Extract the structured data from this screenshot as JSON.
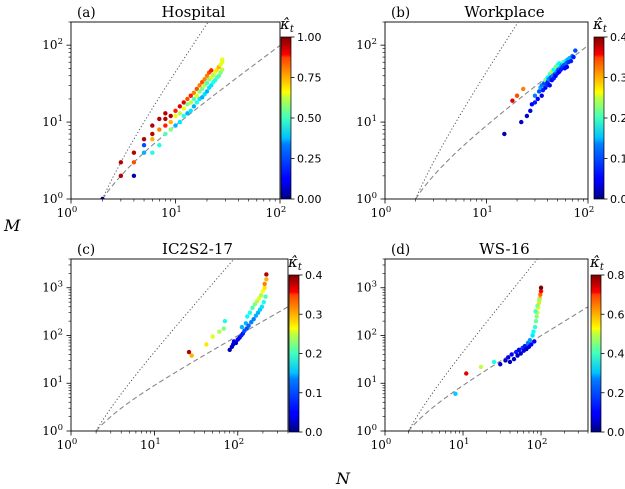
{
  "figure": {
    "x_axis_label": "N",
    "y_axis_label": "M",
    "colorbar_label_main": "κ̂",
    "colorbar_label_sub": "t"
  },
  "chart_data": [
    {
      "type": "scatter",
      "panel_label": "(a)",
      "title": "Hospital",
      "xscale": "log",
      "yscale": "log",
      "xlim": [
        1,
        100
      ],
      "ylim": [
        1,
        200
      ],
      "x_ticks": [
        {
          "base": "10",
          "exp": "0",
          "value": 1
        },
        {
          "base": "10",
          "exp": "1",
          "value": 10
        },
        {
          "base": "10",
          "exp": "2",
          "value": 100
        }
      ],
      "y_ticks": [
        {
          "base": "10",
          "exp": "0",
          "value": 1
        },
        {
          "base": "10",
          "exp": "1",
          "value": 10
        },
        {
          "base": "10",
          "exp": "2",
          "value": 100
        }
      ],
      "colorbar": {
        "min": 0,
        "max": 1,
        "ticks": [
          "0.00",
          "0.25",
          "0.50",
          "0.75",
          "1.00"
        ],
        "tick_values": [
          0,
          0.25,
          0.5,
          0.75,
          1.0
        ]
      },
      "reference_lines": {
        "dotted": "M = N(N-1)/2",
        "dashed": "M = N-1"
      },
      "points": [
        [
          2,
          1,
          0.05
        ],
        [
          3,
          2,
          0.95
        ],
        [
          3,
          3,
          0.95
        ],
        [
          4,
          2,
          0.05
        ],
        [
          4,
          4,
          0.95
        ],
        [
          4,
          3,
          0.8
        ],
        [
          5,
          5,
          0.2
        ],
        [
          5,
          6,
          0.95
        ],
        [
          5,
          4,
          0.3
        ],
        [
          6,
          4,
          0.4
        ],
        [
          6,
          6,
          0.7
        ],
        [
          6,
          7,
          0.95
        ],
        [
          6,
          9,
          0.95
        ],
        [
          7,
          5,
          0.4
        ],
        [
          7,
          8,
          0.75
        ],
        [
          7,
          11,
          0.95
        ],
        [
          8,
          7,
          0.45
        ],
        [
          8,
          9,
          0.85
        ],
        [
          8,
          11,
          0.95
        ],
        [
          8,
          13,
          0.95
        ],
        [
          9,
          8,
          0.5
        ],
        [
          9,
          10,
          0.7
        ],
        [
          9,
          12,
          0.95
        ],
        [
          10,
          9,
          0.3
        ],
        [
          10,
          12,
          0.6
        ],
        [
          10,
          14,
          0.85
        ],
        [
          11,
          10,
          0.35
        ],
        [
          11,
          13,
          0.55
        ],
        [
          11,
          16,
          0.9
        ],
        [
          12,
          12,
          0.4
        ],
        [
          12,
          15,
          0.6
        ],
        [
          12,
          18,
          0.9
        ],
        [
          13,
          13,
          0.3
        ],
        [
          13,
          17,
          0.5
        ],
        [
          13,
          20,
          0.8
        ],
        [
          14,
          14,
          0.35
        ],
        [
          14,
          18,
          0.55
        ],
        [
          14,
          22,
          0.85
        ],
        [
          15,
          16,
          0.3
        ],
        [
          15,
          20,
          0.45
        ],
        [
          15,
          24,
          0.75
        ],
        [
          16,
          18,
          0.4
        ],
        [
          16,
          22,
          0.6
        ],
        [
          16,
          27,
          0.8
        ],
        [
          17,
          20,
          0.35
        ],
        [
          17,
          25,
          0.5
        ],
        [
          17,
          30,
          0.75
        ],
        [
          18,
          21,
          0.3
        ],
        [
          18,
          27,
          0.5
        ],
        [
          18,
          33,
          0.8
        ],
        [
          19,
          23,
          0.35
        ],
        [
          19,
          30,
          0.55
        ],
        [
          19,
          36,
          0.75
        ],
        [
          20,
          25,
          0.3
        ],
        [
          20,
          32,
          0.45
        ],
        [
          20,
          40,
          0.75
        ],
        [
          21,
          28,
          0.35
        ],
        [
          21,
          36,
          0.5
        ],
        [
          21,
          44,
          0.8
        ],
        [
          22,
          30,
          0.35
        ],
        [
          22,
          38,
          0.6
        ],
        [
          22,
          47,
          0.85
        ],
        [
          23,
          33,
          0.4
        ],
        [
          23,
          41,
          0.55
        ],
        [
          24,
          35,
          0.4
        ],
        [
          24,
          45,
          0.6
        ],
        [
          25,
          38,
          0.45
        ],
        [
          25,
          48,
          0.65
        ],
        [
          26,
          40,
          0.45
        ],
        [
          26,
          52,
          0.7
        ],
        [
          27,
          44,
          0.5
        ],
        [
          27,
          56,
          0.6
        ],
        [
          28,
          48,
          0.55
        ],
        [
          28,
          60,
          0.6
        ],
        [
          28,
          65,
          0.6
        ]
      ]
    },
    {
      "type": "scatter",
      "panel_label": "(b)",
      "title": "Workplace",
      "xscale": "log",
      "yscale": "log",
      "xlim": [
        1,
        100
      ],
      "ylim": [
        1,
        200
      ],
      "x_ticks": [
        {
          "base": "10",
          "exp": "0",
          "value": 1
        },
        {
          "base": "10",
          "exp": "1",
          "value": 10
        },
        {
          "base": "10",
          "exp": "2",
          "value": 100
        }
      ],
      "y_ticks": [
        {
          "base": "10",
          "exp": "0",
          "value": 1
        },
        {
          "base": "10",
          "exp": "1",
          "value": 10
        },
        {
          "base": "10",
          "exp": "2",
          "value": 100
        }
      ],
      "colorbar": {
        "min": 0,
        "max": 0.4,
        "ticks": [
          "0.0",
          "0.1",
          "0.2",
          "0.3",
          "0.4"
        ],
        "tick_values": [
          0,
          0.1,
          0.2,
          0.3,
          0.4
        ]
      },
      "reference_lines": {
        "dotted": "M = N(N-1)/2",
        "dashed": "M = N-1"
      },
      "points": [
        [
          15,
          7,
          0.02
        ],
        [
          18,
          19,
          0.36
        ],
        [
          20,
          22,
          0.32
        ],
        [
          23,
          27,
          0.3
        ],
        [
          22,
          10,
          0.03
        ],
        [
          25,
          12,
          0.03
        ],
        [
          27,
          14,
          0.04
        ],
        [
          28,
          17,
          0.05
        ],
        [
          30,
          18,
          0.06
        ],
        [
          30,
          22,
          0.1
        ],
        [
          32,
          20,
          0.05
        ],
        [
          33,
          25,
          0.08
        ],
        [
          34,
          28,
          0.12
        ],
        [
          35,
          22,
          0.04
        ],
        [
          35,
          30,
          0.1
        ],
        [
          36,
          26,
          0.06
        ],
        [
          37,
          32,
          0.08
        ],
        [
          38,
          28,
          0.05
        ],
        [
          38,
          35,
          0.2
        ],
        [
          39,
          30,
          0.07
        ],
        [
          40,
          33,
          0.06
        ],
        [
          40,
          38,
          0.15
        ],
        [
          41,
          36,
          0.1
        ],
        [
          42,
          30,
          0.05
        ],
        [
          42,
          42,
          0.18
        ],
        [
          43,
          38,
          0.08
        ],
        [
          44,
          35,
          0.05
        ],
        [
          44,
          45,
          0.22
        ],
        [
          45,
          40,
          0.1
        ],
        [
          46,
          37,
          0.06
        ],
        [
          46,
          48,
          0.15
        ],
        [
          47,
          42,
          0.08
        ],
        [
          48,
          40,
          0.05
        ],
        [
          48,
          52,
          0.2
        ],
        [
          49,
          45,
          0.12
        ],
        [
          50,
          43,
          0.06
        ],
        [
          50,
          55,
          0.18
        ],
        [
          51,
          48,
          0.08
        ],
        [
          52,
          45,
          0.05
        ],
        [
          52,
          58,
          0.15
        ],
        [
          53,
          50,
          0.1
        ],
        [
          54,
          48,
          0.06
        ],
        [
          55,
          55,
          0.12
        ],
        [
          56,
          52,
          0.07
        ],
        [
          57,
          60,
          0.18
        ],
        [
          58,
          55,
          0.08
        ],
        [
          59,
          50,
          0.05
        ],
        [
          60,
          62,
          0.15
        ],
        [
          61,
          58,
          0.09
        ],
        [
          62,
          52,
          0.05
        ],
        [
          63,
          65,
          0.12
        ],
        [
          64,
          60,
          0.07
        ],
        [
          66,
          68,
          0.12
        ],
        [
          68,
          62,
          0.06
        ],
        [
          70,
          72,
          0.1
        ],
        [
          72,
          70,
          0.06
        ],
        [
          75,
          85,
          0.08
        ]
      ]
    },
    {
      "type": "scatter",
      "panel_label": "(c)",
      "title": "IC2S2-17",
      "xscale": "log",
      "yscale": "log",
      "xlim": [
        1,
        400
      ],
      "ylim": [
        1,
        4000
      ],
      "x_ticks": [
        {
          "base": "10",
          "exp": "0",
          "value": 1
        },
        {
          "base": "10",
          "exp": "1",
          "value": 10
        },
        {
          "base": "10",
          "exp": "2",
          "value": 100
        }
      ],
      "y_ticks": [
        {
          "base": "10",
          "exp": "0",
          "value": 1
        },
        {
          "base": "10",
          "exp": "1",
          "value": 10
        },
        {
          "base": "10",
          "exp": "2",
          "value": 100
        },
        {
          "base": "10",
          "exp": "3",
          "value": 1000
        }
      ],
      "colorbar": {
        "min": 0,
        "max": 0.4,
        "ticks": [
          "0.0",
          "0.1",
          "0.2",
          "0.3",
          "0.4"
        ],
        "tick_values": [
          0,
          0.1,
          0.2,
          0.3,
          0.4
        ]
      },
      "reference_lines": {
        "dotted": "M = N(N-1)/2",
        "dashed": "M = N-1"
      },
      "points": [
        [
          26,
          45,
          0.38
        ],
        [
          28,
          38,
          0.28
        ],
        [
          42,
          65,
          0.26
        ],
        [
          50,
          95,
          0.24
        ],
        [
          60,
          120,
          0.22
        ],
        [
          68,
          140,
          0.2
        ],
        [
          70,
          200,
          0.16
        ],
        [
          80,
          50,
          0.02
        ],
        [
          85,
          58,
          0.03
        ],
        [
          88,
          65,
          0.03
        ],
        [
          90,
          75,
          0.04
        ],
        [
          95,
          70,
          0.03
        ],
        [
          100,
          82,
          0.05
        ],
        [
          105,
          90,
          0.05
        ],
        [
          110,
          100,
          0.06
        ],
        [
          112,
          150,
          0.12
        ],
        [
          115,
          110,
          0.06
        ],
        [
          120,
          125,
          0.08
        ],
        [
          125,
          180,
          0.12
        ],
        [
          128,
          140,
          0.08
        ],
        [
          130,
          250,
          0.15
        ],
        [
          135,
          160,
          0.09
        ],
        [
          140,
          300,
          0.16
        ],
        [
          145,
          190,
          0.1
        ],
        [
          150,
          380,
          0.18
        ],
        [
          155,
          220,
          0.1
        ],
        [
          160,
          450,
          0.2
        ],
        [
          165,
          260,
          0.12
        ],
        [
          170,
          520,
          0.22
        ],
        [
          175,
          300,
          0.12
        ],
        [
          180,
          600,
          0.24
        ],
        [
          185,
          350,
          0.13
        ],
        [
          190,
          700,
          0.22
        ],
        [
          195,
          400,
          0.14
        ],
        [
          200,
          850,
          0.25
        ],
        [
          205,
          500,
          0.16
        ],
        [
          210,
          1000,
          0.26
        ],
        [
          210,
          1200,
          0.3
        ],
        [
          215,
          650,
          0.18
        ],
        [
          220,
          1500,
          0.28
        ],
        [
          220,
          1900,
          0.38
        ]
      ]
    },
    {
      "type": "scatter",
      "panel_label": "(d)",
      "title": "WS-16",
      "xscale": "log",
      "yscale": "log",
      "xlim": [
        1,
        400
      ],
      "ylim": [
        1,
        4000
      ],
      "x_ticks": [
        {
          "base": "10",
          "exp": "0",
          "value": 1
        },
        {
          "base": "10",
          "exp": "1",
          "value": 10
        },
        {
          "base": "10",
          "exp": "2",
          "value": 100
        }
      ],
      "y_ticks": [
        {
          "base": "10",
          "exp": "0",
          "value": 1
        },
        {
          "base": "10",
          "exp": "1",
          "value": 10
        },
        {
          "base": "10",
          "exp": "2",
          "value": 100
        },
        {
          "base": "10",
          "exp": "3",
          "value": 1000
        }
      ],
      "colorbar": {
        "min": 0,
        "max": 0.8,
        "ticks": [
          "0.0",
          "0.2",
          "0.4",
          "0.6",
          "0.8"
        ],
        "tick_values": [
          0,
          0.2,
          0.4,
          0.6,
          0.8
        ]
      },
      "reference_lines": {
        "dotted": "M = N(N-1)/2",
        "dashed": "M = N-1"
      },
      "points": [
        [
          8,
          6,
          0.26
        ],
        [
          11,
          16,
          0.72
        ],
        [
          17,
          22,
          0.45
        ],
        [
          25,
          28,
          0.32
        ],
        [
          30,
          25,
          0.05
        ],
        [
          35,
          30,
          0.06
        ],
        [
          38,
          35,
          0.08
        ],
        [
          40,
          28,
          0.04
        ],
        [
          42,
          40,
          0.1
        ],
        [
          45,
          32,
          0.05
        ],
        [
          48,
          45,
          0.12
        ],
        [
          50,
          38,
          0.06
        ],
        [
          52,
          50,
          0.1
        ],
        [
          55,
          42,
          0.05
        ],
        [
          58,
          55,
          0.14
        ],
        [
          60,
          48,
          0.07
        ],
        [
          62,
          60,
          0.12
        ],
        [
          65,
          52,
          0.06
        ],
        [
          68,
          70,
          0.2
        ],
        [
          70,
          58,
          0.08
        ],
        [
          72,
          80,
          0.22
        ],
        [
          75,
          65,
          0.1
        ],
        [
          78,
          100,
          0.28
        ],
        [
          80,
          120,
          0.3
        ],
        [
          82,
          75,
          0.1
        ],
        [
          84,
          150,
          0.34
        ],
        [
          86,
          200,
          0.38
        ],
        [
          88,
          250,
          0.4
        ],
        [
          90,
          300,
          0.45
        ],
        [
          92,
          380,
          0.48
        ],
        [
          94,
          480,
          0.52
        ],
        [
          96,
          600,
          0.55
        ],
        [
          98,
          720,
          0.62
        ],
        [
          100,
          850,
          0.7
        ],
        [
          100,
          1000,
          0.82
        ],
        [
          95,
          550,
          0.42
        ],
        [
          90,
          420,
          0.4
        ],
        [
          85,
          320,
          0.35
        ]
      ]
    }
  ]
}
